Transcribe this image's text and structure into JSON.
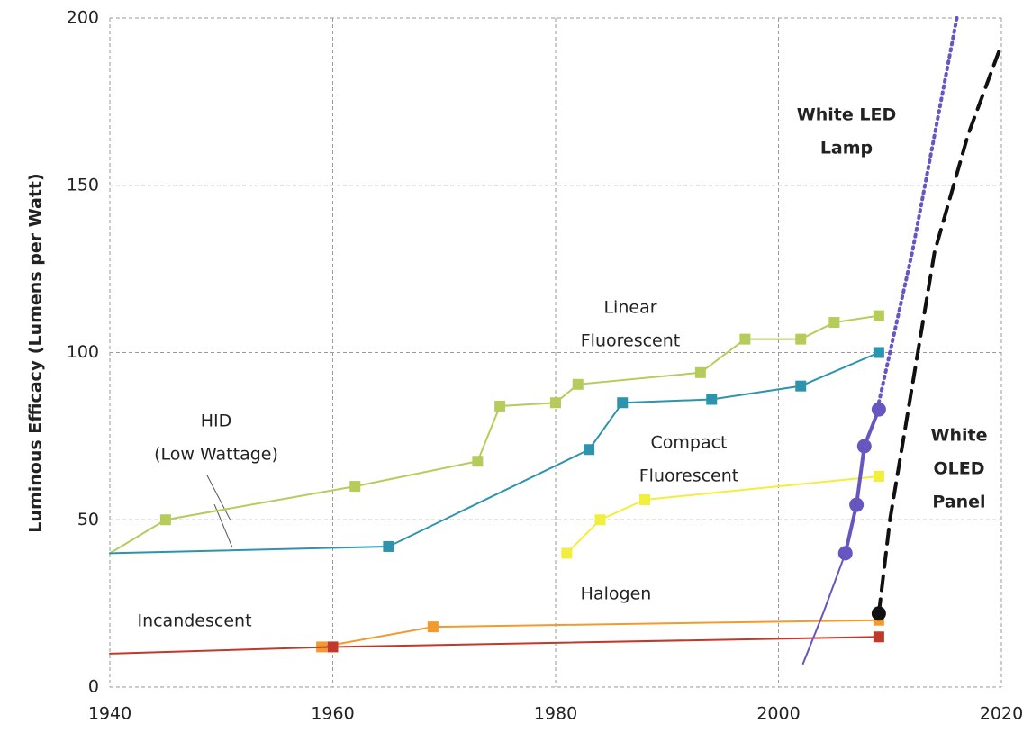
{
  "chart_data": {
    "type": "line",
    "y_label": "Luminous Efficacy (Lumens per Watt)",
    "xlim": [
      1940,
      2020
    ],
    "xticks": [
      1940,
      1960,
      1980,
      2000,
      2020
    ],
    "ylim": [
      0,
      200
    ],
    "yticks": [
      0,
      50,
      100,
      150,
      200
    ],
    "grid": true,
    "series": [
      {
        "color": "#b5cc5a",
        "style": "solid",
        "marker": "square",
        "x": [
          1945,
          1962,
          1973,
          1975,
          1980,
          1982,
          1993,
          1997,
          2002,
          2005,
          2009
        ],
        "values": [
          50,
          60,
          67.5,
          84,
          85,
          90.5,
          94,
          104,
          104,
          109,
          111
        ]
      },
      {
        "color": "#2e93ad",
        "style": "solid",
        "marker": "square",
        "x": [
          1965,
          1983,
          1986,
          1994,
          2002,
          2009
        ],
        "values": [
          42,
          71,
          85,
          86,
          90,
          100
        ]
      },
      {
        "color": "#f2ee3c",
        "style": "solid",
        "marker": "square",
        "x": [
          1981,
          1984,
          1988,
          2009
        ],
        "values": [
          40,
          50,
          56,
          63
        ]
      },
      {
        "color": "#f39a2e",
        "style": "solid",
        "marker": "square",
        "x": [
          1959,
          1969,
          2009
        ],
        "values": [
          12,
          18,
          20
        ]
      },
      {
        "color": "#c0392b",
        "style": "solid",
        "marker": "square",
        "x": [
          1960,
          2009
        ],
        "values": [
          12,
          15
        ]
      },
      {
        "color": "#b5cc5a",
        "style": "solid",
        "marker": "none",
        "x": [
          1940,
          1945
        ],
        "values": [
          40,
          50
        ]
      },
      {
        "color": "#2e93ad",
        "style": "solid",
        "marker": "none",
        "x": [
          1940,
          1965
        ],
        "values": [
          40,
          42
        ]
      },
      {
        "color": "#c0392b",
        "style": "solid",
        "marker": "none",
        "x": [
          1940,
          1960
        ],
        "values": [
          10,
          12
        ]
      },
      {
        "color": "#6656c0",
        "style": "solid",
        "marker": "none",
        "x": [
          2002.2,
          2004,
          2006
        ],
        "values": [
          7,
          22,
          40
        ]
      },
      {
        "color": "#6656c0",
        "style": "solid",
        "marker": "circle",
        "x": [
          2006,
          2007,
          2007.7,
          2009
        ],
        "values": [
          40,
          54.5,
          72,
          83
        ]
      },
      {
        "color": "#6656c0",
        "style": "dotted",
        "marker": "none",
        "x": [
          2009,
          2010,
          2012,
          2014,
          2016
        ],
        "values": [
          85,
          100,
          130,
          165,
          200
        ]
      },
      {
        "color": "#111111",
        "style": "dashed",
        "marker": "circle",
        "x": [
          2009
        ],
        "values": [
          22
        ]
      },
      {
        "color": "#111111",
        "style": "dashed",
        "marker": "none",
        "x": [
          2009,
          2010,
          2012,
          2014,
          2017,
          2020
        ],
        "values": [
          22,
          50,
          90,
          130,
          165,
          192
        ]
      }
    ],
    "annotations": [
      {
        "lines": [
          "White LED",
          "Lamp"
        ],
        "bold": true
      },
      {
        "lines": [
          "Linear",
          "Fluorescent"
        ],
        "bold": false
      },
      {
        "lines": [
          "HID",
          "(Low Wattage)"
        ],
        "bold": false
      },
      {
        "lines": [
          "Compact",
          "Fluorescent"
        ],
        "bold": false
      },
      {
        "lines": [
          "White",
          "OLED",
          "Panel"
        ],
        "bold": true
      },
      {
        "lines": [
          "Halogen"
        ],
        "bold": false
      },
      {
        "lines": [
          "Incandescent"
        ],
        "bold": false
      }
    ]
  }
}
